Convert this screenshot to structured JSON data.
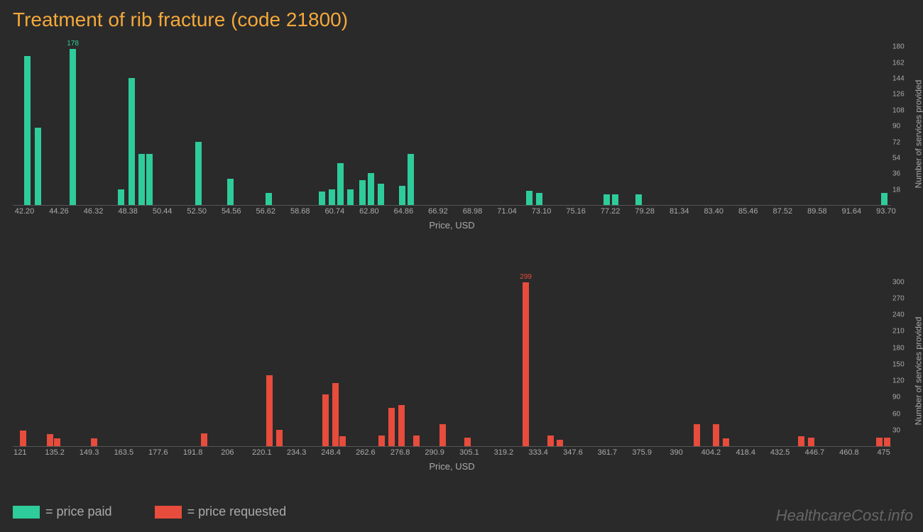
{
  "title": "Treatment of rib fracture (code 21800)",
  "colors": {
    "background": "#2a2a2a",
    "title": "#f4a83a",
    "green": "#2ecc9a",
    "red": "#e74c3c",
    "axis_text": "#aaaaaa",
    "watermark": "#666666"
  },
  "top_chart": {
    "xlabel": "Price, USD",
    "ylabel": "Number of services provided",
    "xmin": 41.5,
    "xmax": 94.0,
    "ymax": 185,
    "xticks": [
      "42.20",
      "44.26",
      "46.32",
      "48.38",
      "50.44",
      "52.50",
      "54.56",
      "56.62",
      "58.68",
      "60.74",
      "62.80",
      "64.86",
      "66.92",
      "68.98",
      "71.04",
      "73.10",
      "75.16",
      "77.22",
      "79.28",
      "81.34",
      "83.40",
      "85.46",
      "87.52",
      "89.58",
      "91.64",
      "93.70"
    ],
    "yticks": [
      18,
      36,
      54,
      72,
      90,
      108,
      126,
      144,
      162,
      180
    ],
    "peak_label": "178",
    "bars": [
      {
        "x": 42.2,
        "y": 170
      },
      {
        "x": 42.8,
        "y": 88
      },
      {
        "x": 44.9,
        "y": 178,
        "label": "178"
      },
      {
        "x": 47.8,
        "y": 18
      },
      {
        "x": 48.4,
        "y": 145
      },
      {
        "x": 49.0,
        "y": 58
      },
      {
        "x": 49.5,
        "y": 58
      },
      {
        "x": 52.4,
        "y": 72
      },
      {
        "x": 54.3,
        "y": 30
      },
      {
        "x": 56.6,
        "y": 14
      },
      {
        "x": 59.8,
        "y": 15
      },
      {
        "x": 60.4,
        "y": 18
      },
      {
        "x": 60.9,
        "y": 48
      },
      {
        "x": 61.5,
        "y": 18
      },
      {
        "x": 62.2,
        "y": 28
      },
      {
        "x": 62.7,
        "y": 36
      },
      {
        "x": 63.3,
        "y": 24
      },
      {
        "x": 64.6,
        "y": 22
      },
      {
        "x": 65.1,
        "y": 58
      },
      {
        "x": 72.2,
        "y": 16
      },
      {
        "x": 72.8,
        "y": 14
      },
      {
        "x": 76.8,
        "y": 12
      },
      {
        "x": 77.3,
        "y": 12
      },
      {
        "x": 78.7,
        "y": 12
      },
      {
        "x": 93.4,
        "y": 14
      }
    ]
  },
  "bottom_chart": {
    "xlabel": "Price, USD",
    "ylabel": "Number of services provided",
    "xmin": 118,
    "xmax": 478,
    "ymax": 310,
    "xticks": [
      "121",
      "135.2",
      "149.3",
      "163.5",
      "177.6",
      "191.8",
      "206",
      "220.1",
      "234.3",
      "248.4",
      "262.6",
      "276.8",
      "290.9",
      "305.1",
      "319.2",
      "333.4",
      "347.6",
      "361.7",
      "375.9",
      "390",
      "404.2",
      "418.4",
      "432.5",
      "446.7",
      "460.8",
      "475"
    ],
    "yticks": [
      30,
      60,
      90,
      120,
      150,
      180,
      210,
      240,
      270,
      300
    ],
    "peak_label": "299",
    "bars": [
      {
        "x": 121,
        "y": 28
      },
      {
        "x": 132,
        "y": 22
      },
      {
        "x": 135,
        "y": 14
      },
      {
        "x": 150,
        "y": 14
      },
      {
        "x": 195,
        "y": 24
      },
      {
        "x": 222,
        "y": 130
      },
      {
        "x": 226,
        "y": 30
      },
      {
        "x": 245,
        "y": 95
      },
      {
        "x": 249,
        "y": 115
      },
      {
        "x": 252,
        "y": 18
      },
      {
        "x": 268,
        "y": 20
      },
      {
        "x": 272,
        "y": 70
      },
      {
        "x": 276,
        "y": 75
      },
      {
        "x": 282,
        "y": 20
      },
      {
        "x": 293,
        "y": 40
      },
      {
        "x": 303,
        "y": 16
      },
      {
        "x": 327,
        "y": 299,
        "label": "299"
      },
      {
        "x": 337,
        "y": 20
      },
      {
        "x": 341,
        "y": 12
      },
      {
        "x": 397,
        "y": 40
      },
      {
        "x": 405,
        "y": 40
      },
      {
        "x": 409,
        "y": 14
      },
      {
        "x": 440,
        "y": 18
      },
      {
        "x": 444,
        "y": 16
      },
      {
        "x": 472,
        "y": 16
      },
      {
        "x": 475,
        "y": 16
      }
    ]
  },
  "legend": {
    "paid": "= price paid",
    "requested": "= price requested"
  },
  "watermark": "HealthcareCost.info"
}
